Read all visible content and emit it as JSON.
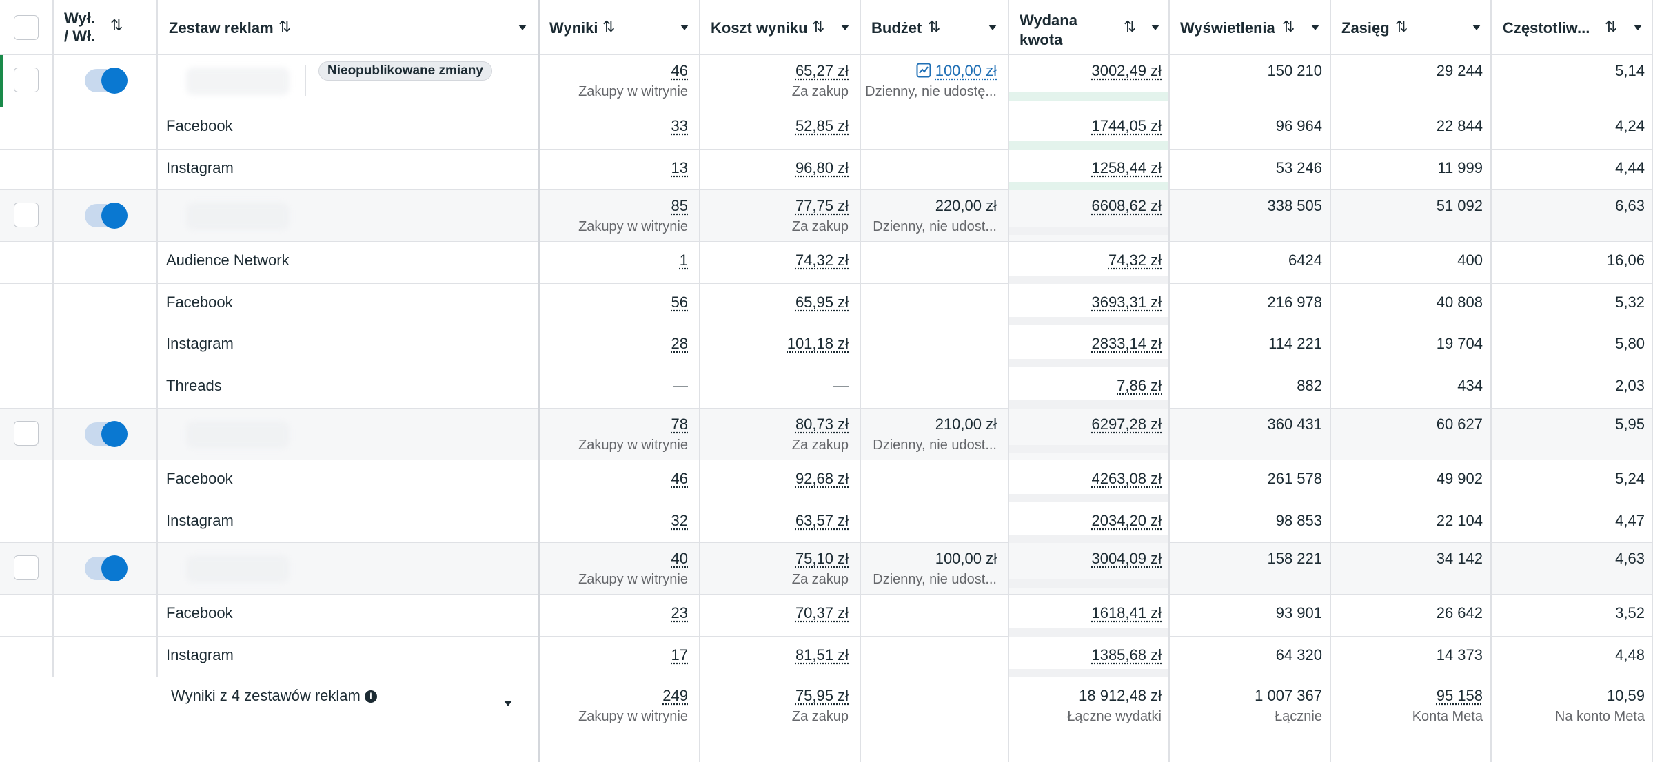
{
  "header": {
    "toggle_col": "Wył. / Wł.",
    "toggle_col_line1": "Wył.",
    "toggle_col_line2": "/ Wł.",
    "adset_col": "Zestaw reklam",
    "results_col": "Wyniki",
    "cpr_col": "Koszt wyniku",
    "budget_col": "Budżet",
    "spend_col_line1": "Wydana",
    "spend_col_line2": "kwota",
    "impressions_col": "Wyświetlenia",
    "reach_col": "Zasięg",
    "frequency_col": "Częstotliw..."
  },
  "badge_unpublished": "Nieopublikowane zmiany",
  "rows": [
    {
      "type": "parent",
      "results": "46",
      "results_sub": "Zakupy w witrynie",
      "cpr": "65,27 zł",
      "cpr_sub": "Za zakup",
      "budget": "100,00 zł",
      "budget_sub": "Dzienny, nie udostę...",
      "spend": "3002,49 zł",
      "impressions": "150 210",
      "reach": "29 244",
      "frequency": "5,14"
    },
    {
      "type": "breakdown",
      "label": "Facebook",
      "results": "33",
      "cpr": "52,85 zł",
      "spend": "1744,05 zł",
      "impressions": "96 964",
      "reach": "22 844",
      "frequency": "4,24"
    },
    {
      "type": "breakdown",
      "label": "Instagram",
      "results": "13",
      "cpr": "96,80 zł",
      "spend": "1258,44 zł",
      "impressions": "53 246",
      "reach": "11 999",
      "frequency": "4,44"
    },
    {
      "type": "parent",
      "results": "85",
      "results_sub": "Zakupy w witrynie",
      "cpr": "77,75 zł",
      "cpr_sub": "Za zakup",
      "budget": "220,00 zł",
      "budget_sub": "Dzienny, nie udost...",
      "spend": "6608,62 zł",
      "impressions": "338 505",
      "reach": "51 092",
      "frequency": "6,63"
    },
    {
      "type": "breakdown",
      "label": "Audience Network",
      "results": "1",
      "cpr": "74,32 zł",
      "spend": "74,32 zł",
      "impressions": "6424",
      "reach": "400",
      "frequency": "16,06"
    },
    {
      "type": "breakdown",
      "label": "Facebook",
      "results": "56",
      "cpr": "65,95 zł",
      "spend": "3693,31 zł",
      "impressions": "216 978",
      "reach": "40 808",
      "frequency": "5,32"
    },
    {
      "type": "breakdown",
      "label": "Instagram",
      "results": "28",
      "cpr": "101,18 zł",
      "spend": "2833,14 zł",
      "impressions": "114 221",
      "reach": "19 704",
      "frequency": "5,80"
    },
    {
      "type": "breakdown",
      "label": "Threads",
      "results": "—",
      "cpr": "—",
      "spend": "7,86 zł",
      "impressions": "882",
      "reach": "434",
      "frequency": "2,03"
    },
    {
      "type": "parent",
      "results": "78",
      "results_sub": "Zakupy w witrynie",
      "cpr": "80,73 zł",
      "cpr_sub": "Za zakup",
      "budget": "210,00 zł",
      "budget_sub": "Dzienny, nie udost...",
      "spend": "6297,28 zł",
      "impressions": "360 431",
      "reach": "60 627",
      "frequency": "5,95"
    },
    {
      "type": "breakdown",
      "label": "Facebook",
      "results": "46",
      "cpr": "92,68 zł",
      "spend": "4263,08 zł",
      "impressions": "261 578",
      "reach": "49 902",
      "frequency": "5,24"
    },
    {
      "type": "breakdown",
      "label": "Instagram",
      "results": "32",
      "cpr": "63,57 zł",
      "spend": "2034,20 zł",
      "impressions": "98 853",
      "reach": "22 104",
      "frequency": "4,47"
    },
    {
      "type": "parent",
      "results": "40",
      "results_sub": "Zakupy w witrynie",
      "cpr": "75,10 zł",
      "cpr_sub": "Za zakup",
      "budget": "100,00 zł",
      "budget_sub": "Dzienny, nie udost...",
      "spend": "3004,09 zł",
      "impressions": "158 221",
      "reach": "34 142",
      "frequency": "4,63"
    },
    {
      "type": "breakdown",
      "label": "Facebook",
      "results": "23",
      "cpr": "70,37 zł",
      "spend": "1618,41 zł",
      "impressions": "93 901",
      "reach": "26 642",
      "frequency": "3,52"
    },
    {
      "type": "breakdown",
      "label": "Instagram",
      "results": "17",
      "cpr": "81,51 zł",
      "spend": "1385,68 zł",
      "impressions": "64 320",
      "reach": "14 373",
      "frequency": "4,48"
    }
  ],
  "footer": {
    "label": "Wyniki z 4 zestawów reklam",
    "results": "249",
    "results_sub": "Zakupy w witrynie",
    "cpr": "75,95 zł",
    "cpr_sub": "Za zakup",
    "spend": "18 912,48 zł",
    "spend_sub": "Łączne wydatki",
    "impressions": "1 007 367",
    "impressions_sub": "Łącznie",
    "reach": "95 158",
    "reach_sub": "Konta Meta",
    "frequency": "10,59",
    "frequency_sub": "Na konto Meta"
  }
}
